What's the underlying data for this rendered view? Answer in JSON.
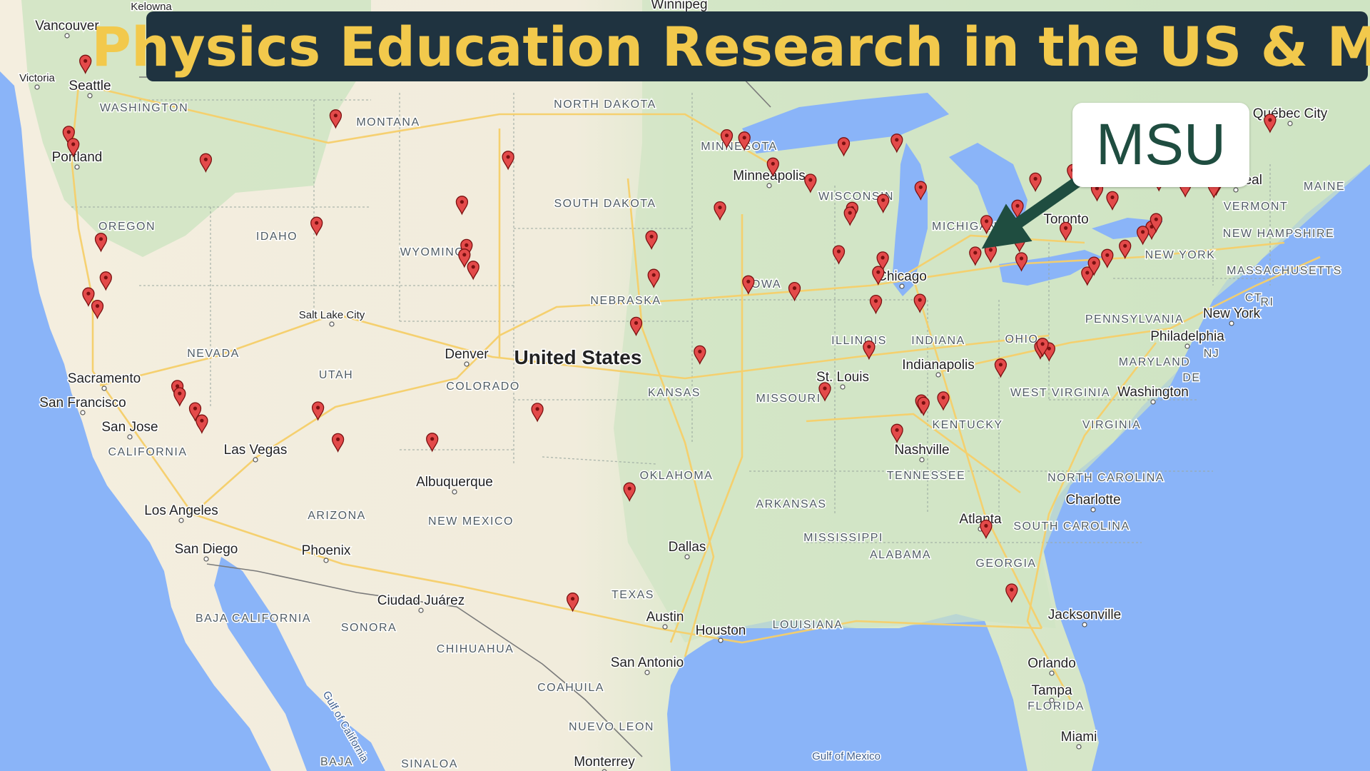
{
  "title": "Physics Education Research in the US & MX",
  "callout": "MSU",
  "colors": {
    "water": "#8ab4f8",
    "land": "#e9efe0",
    "land_green": "#cfe4c3",
    "desert": "#f5efe0",
    "banner_bg": "#1f3340",
    "banner_text": "#f2c94c",
    "callout_text": "#1f4d40",
    "arrow": "#1f4d40",
    "marker": "#e34a4a",
    "road": "#f6cf6a"
  },
  "icons": {
    "marker": "map-pin-icon",
    "arrow": "arrow-icon"
  },
  "labels": {
    "countries": [
      "United States"
    ],
    "states": [
      "WASHINGTON",
      "OREGON",
      "CALIFORNIA",
      "NEVADA",
      "IDAHO",
      "MONTANA",
      "WYOMING",
      "UTAH",
      "ARIZONA",
      "COLORADO",
      "NEW MEXICO",
      "NORTH DAKOTA",
      "SOUTH DAKOTA",
      "NEBRASKA",
      "KANSAS",
      "OKLAHOMA",
      "TEXAS",
      "MINNESOTA",
      "IOWA",
      "MISSOURI",
      "ARKANSAS",
      "LOUISIANA",
      "WISCONSIN",
      "ILLINOIS",
      "MICHIGAN",
      "INDIANA",
      "OHIO",
      "KENTUCKY",
      "TENNESSEE",
      "MISSISSIPPI",
      "ALABAMA",
      "GEORGIA",
      "FLORIDA",
      "SOUTH CAROLINA",
      "NORTH CAROLINA",
      "VIRGINIA",
      "WEST VIRGINIA",
      "PENNSYLVANIA",
      "NEW YORK",
      "MARYLAND",
      "NJ",
      "DE",
      "CT",
      "RI",
      "VERMONT",
      "NEW HAMPSHIRE",
      "MASSACHUSETTS",
      "MAINE",
      "BAJA CALIFORNIA",
      "SONORA",
      "CHIHUAHUA",
      "COAHUILA",
      "NUEVO LEON",
      "BAJA",
      "SINALOA"
    ],
    "cities": [
      "Vancouver",
      "Victoria",
      "Kelowna",
      "Winnipeg",
      "Seattle",
      "Portland",
      "Salt Lake City",
      "Denver",
      "Sacramento",
      "San Francisco",
      "San Jose",
      "Las Vegas",
      "Los Angeles",
      "San Diego",
      "Phoenix",
      "Albuquerque",
      "Ciudad Juárez",
      "Dallas",
      "Austin",
      "Houston",
      "San Antonio",
      "Monterrey",
      "Minneapolis",
      "Chicago",
      "St. Louis",
      "Indianapolis",
      "Nashville",
      "Atlanta",
      "Charlotte",
      "Jacksonville",
      "Orlando",
      "Tampa",
      "Miami",
      "Washington",
      "Philadelphia",
      "New York",
      "Toronto",
      "Montreal",
      "Québec City"
    ],
    "water": [
      "Gulf of California",
      "Gulf of Mexico"
    ]
  },
  "markers": [
    {
      "lon": -122.3,
      "lat": 47.6
    },
    {
      "lon": -123.1,
      "lat": 44.6
    },
    {
      "lon": -122.9,
      "lat": 44.1
    },
    {
      "lon": -116.9,
      "lat": 43.7
    },
    {
      "lon": -111.0,
      "lat": 45.7
    },
    {
      "lon": -111.9,
      "lat": 41.2
    },
    {
      "lon": -121.7,
      "lat": 40.2
    },
    {
      "lon": -121.5,
      "lat": 38.6
    },
    {
      "lon": -122.3,
      "lat": 37.9
    },
    {
      "lon": -121.9,
      "lat": 37.4
    },
    {
      "lon": -118.3,
      "lat": 34.2
    },
    {
      "lon": -118.2,
      "lat": 33.9
    },
    {
      "lon": -117.5,
      "lat": 33.3
    },
    {
      "lon": -117.2,
      "lat": 32.8
    },
    {
      "lon": -111.9,
      "lat": 33.5
    },
    {
      "lon": -111.0,
      "lat": 32.2
    },
    {
      "lon": -106.7,
      "lat": 32.3
    },
    {
      "lon": -105.3,
      "lat": 42.2
    },
    {
      "lon": -105.1,
      "lat": 40.4
    },
    {
      "lon": -105.2,
      "lat": 40.0
    },
    {
      "lon": -104.8,
      "lat": 39.5
    },
    {
      "lon": -103.2,
      "lat": 44.1
    },
    {
      "lon": -97.1,
      "lat": 47.9
    },
    {
      "lon": -96.7,
      "lat": 40.8
    },
    {
      "lon": -96.6,
      "lat": 39.2
    },
    {
      "lon": -97.4,
      "lat": 37.2
    },
    {
      "lon": -101.9,
      "lat": 33.6
    },
    {
      "lon": -97.7,
      "lat": 30.3
    },
    {
      "lon": -100.3,
      "lat": 25.7
    },
    {
      "lon": -93.3,
      "lat": 45.0
    },
    {
      "lon": -92.5,
      "lat": 44.9
    },
    {
      "lon": -93.6,
      "lat": 42.0
    },
    {
      "lon": -92.3,
      "lat": 38.9
    },
    {
      "lon": -94.5,
      "lat": 36.0
    },
    {
      "lon": -90.2,
      "lat": 38.6
    },
    {
      "lon": -91.2,
      "lat": 43.8
    },
    {
      "lon": -89.5,
      "lat": 43.1
    },
    {
      "lon": -88.0,
      "lat": 44.6
    },
    {
      "lon": -87.6,
      "lat": 41.9
    },
    {
      "lon": -87.7,
      "lat": 41.7
    },
    {
      "lon": -88.2,
      "lat": 40.1
    },
    {
      "lon": -85.6,
      "lat": 44.7
    },
    {
      "lon": -84.5,
      "lat": 42.7
    },
    {
      "lon": -86.2,
      "lat": 42.2
    },
    {
      "lon": -86.2,
      "lat": 39.8
    },
    {
      "lon": -86.4,
      "lat": 39.2
    },
    {
      "lon": -86.5,
      "lat": 38.0
    },
    {
      "lon": -84.5,
      "lat": 38.0
    },
    {
      "lon": -86.8,
      "lat": 36.1
    },
    {
      "lon": -88.8,
      "lat": 34.4
    },
    {
      "lon": -84.4,
      "lat": 33.8
    },
    {
      "lon": -84.3,
      "lat": 33.7
    },
    {
      "lon": -83.4,
      "lat": 33.9
    },
    {
      "lon": -85.5,
      "lat": 32.6
    },
    {
      "lon": -81.4,
      "lat": 28.5
    },
    {
      "lon": -80.2,
      "lat": 25.8
    },
    {
      "lon": -82.0,
      "lat": 39.9
    },
    {
      "lon": -81.3,
      "lat": 40.0
    },
    {
      "lon": -81.5,
      "lat": 41.2
    },
    {
      "lon": -80.0,
      "lat": 40.4
    },
    {
      "lon": -79.9,
      "lat": 39.6
    },
    {
      "lon": -80.1,
      "lat": 41.8
    },
    {
      "lon": -79.3,
      "lat": 42.9
    },
    {
      "lon": -76.5,
      "lat": 42.4
    },
    {
      "lon": -77.6,
      "lat": 43.2
    },
    {
      "lon": -75.8,
      "lat": 42.0
    },
    {
      "lon": -77.9,
      "lat": 40.8
    },
    {
      "lon": -75.2,
      "lat": 39.95
    },
    {
      "lon": -76.9,
      "lat": 38.9
    },
    {
      "lon": -76.6,
      "lat": 39.3
    },
    {
      "lon": -76.0,
      "lat": 39.6
    },
    {
      "lon": -74.0,
      "lat": 40.7
    },
    {
      "lon": -74.4,
      "lat": 40.5
    },
    {
      "lon": -73.8,
      "lat": 41.0
    },
    {
      "lon": -72.5,
      "lat": 42.4
    },
    {
      "lon": -71.1,
      "lat": 42.4
    },
    {
      "lon": -71.2,
      "lat": 42.3
    },
    {
      "lon": -73.7,
      "lat": 42.7
    },
    {
      "lon": -68.7,
      "lat": 44.9
    },
    {
      "lon": -80.8,
      "lat": 35.2
    },
    {
      "lon": -79.0,
      "lat": 35.9
    },
    {
      "lon": -78.6,
      "lat": 35.8
    },
    {
      "lon": -78.9,
      "lat": 36.0
    }
  ],
  "highlight": {
    "name": "MSU",
    "lon": -84.5,
    "lat": 42.7
  }
}
